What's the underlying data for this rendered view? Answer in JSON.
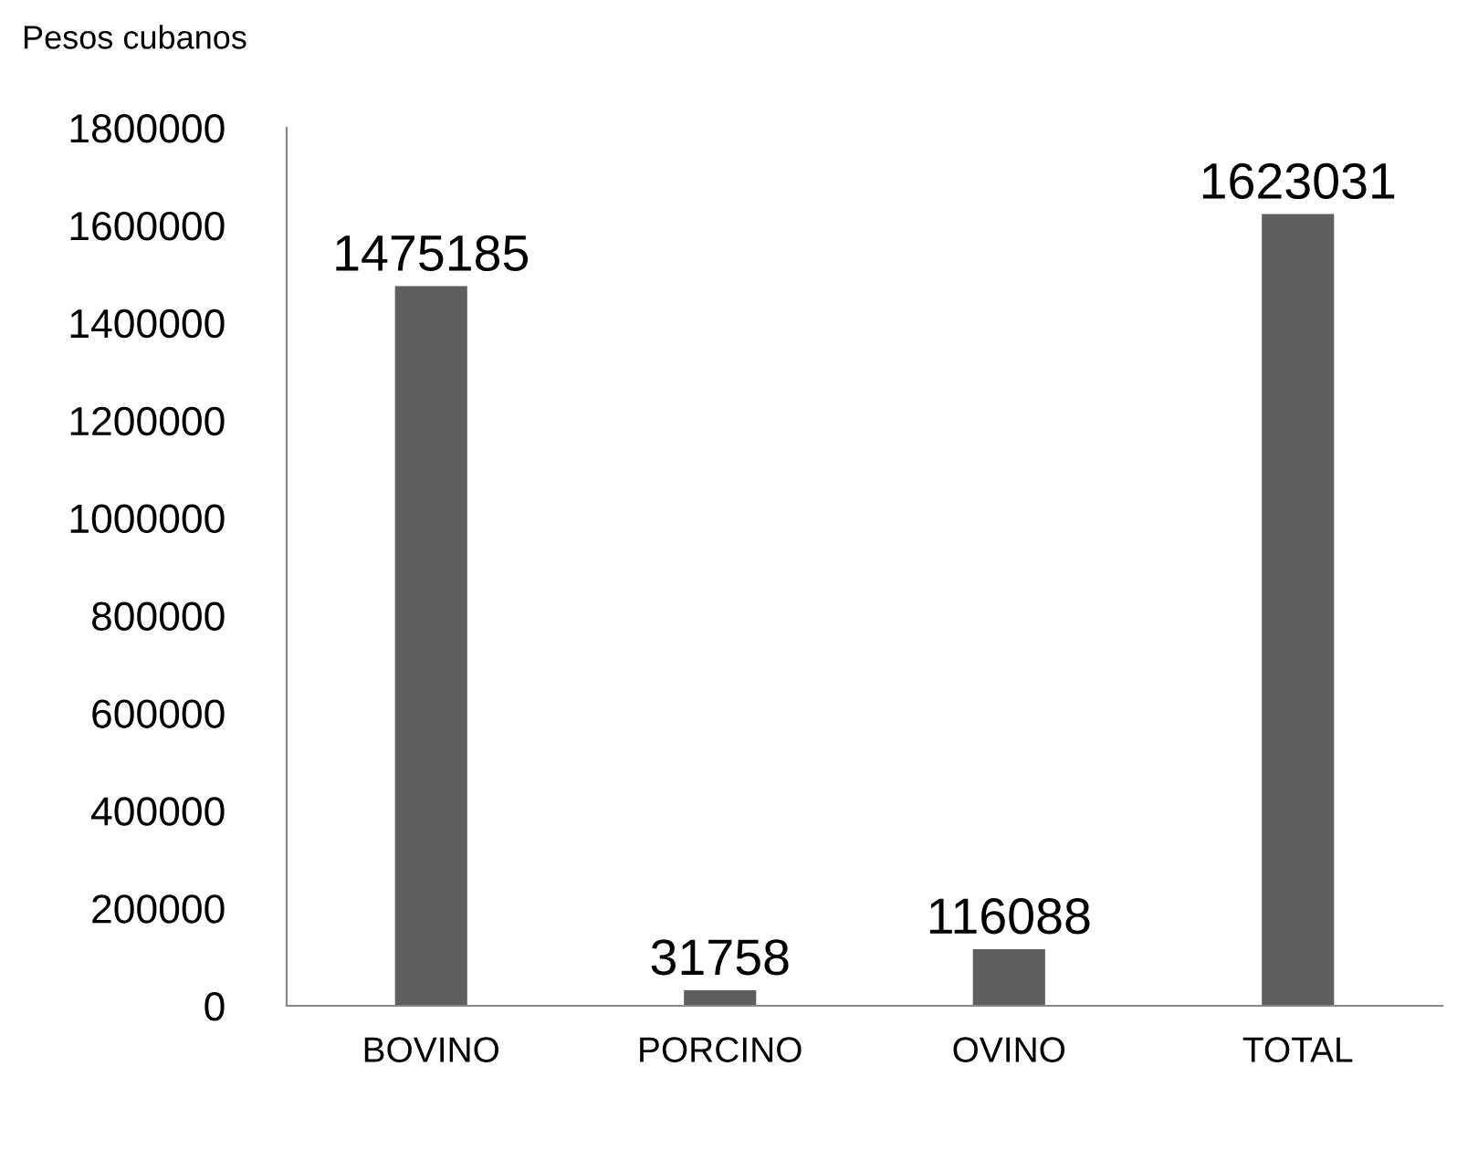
{
  "chart_data": {
    "type": "bar",
    "ylabel": "Pesos cubanos",
    "categories": [
      "BOVINO",
      "PORCINO",
      "OVINO",
      "TOTAL"
    ],
    "values": [
      1475185,
      31758,
      116088,
      1623031
    ],
    "color": "#5f5f5f",
    "ylim": [
      0,
      1800000
    ],
    "yticks": [
      0,
      200000,
      400000,
      600000,
      800000,
      1000000,
      1200000,
      1400000,
      1600000,
      1800000
    ],
    "data_labels": true,
    "grid": false,
    "legend": false
  }
}
